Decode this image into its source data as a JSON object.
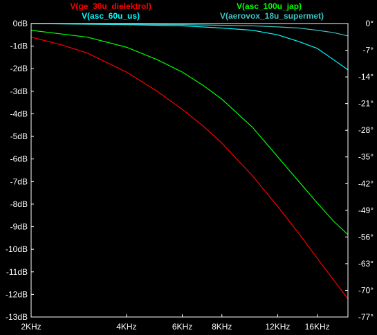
{
  "chart_data": {
    "type": "line",
    "xscale": "log",
    "xlim": [
      2000,
      20000
    ],
    "ylim": [
      -13,
      0
    ],
    "y2lim": [
      -77,
      0
    ],
    "xunit": "Hz",
    "x_ticks": [
      {
        "value": 2000,
        "label": "2KHz"
      },
      {
        "value": 4000,
        "label": "4KHz"
      },
      {
        "value": 6000,
        "label": "6KHz"
      },
      {
        "value": 8000,
        "label": "8KHz"
      },
      {
        "value": 12000,
        "label": "12KHz"
      },
      {
        "value": 16000,
        "label": "16KHz"
      }
    ],
    "y_ticks": [
      {
        "value": 0,
        "label": "0dB"
      },
      {
        "value": -1,
        "label": "-1dB"
      },
      {
        "value": -2,
        "label": "-2dB"
      },
      {
        "value": -3,
        "label": "-3dB"
      },
      {
        "value": -4,
        "label": "-4dB"
      },
      {
        "value": -5,
        "label": "-5dB"
      },
      {
        "value": -6,
        "label": "-6dB"
      },
      {
        "value": -7,
        "label": "-7dB"
      },
      {
        "value": -8,
        "label": "-8dB"
      },
      {
        "value": -9,
        "label": "-9dB"
      },
      {
        "value": -10,
        "label": "-10dB"
      },
      {
        "value": -11,
        "label": "-11dB"
      },
      {
        "value": -12,
        "label": "-12dB"
      },
      {
        "value": -13,
        "label": "-13dB"
      }
    ],
    "y2_ticks": [
      {
        "value": 0,
        "label": "0°"
      },
      {
        "value": -7,
        "label": "-7°"
      },
      {
        "value": -14,
        "label": "-14°"
      },
      {
        "value": -21,
        "label": "-21°"
      },
      {
        "value": -28,
        "label": "-28°"
      },
      {
        "value": -35,
        "label": "-35°"
      },
      {
        "value": -42,
        "label": "-42°"
      },
      {
        "value": -49,
        "label": "-49°"
      },
      {
        "value": -56,
        "label": "-56°"
      },
      {
        "value": -63,
        "label": "-63°"
      },
      {
        "value": -70,
        "label": "-70°"
      },
      {
        "value": -77,
        "label": "-77°"
      }
    ],
    "grid": false,
    "legend_position": "top",
    "series": [
      {
        "name": "V(ge_30u_dielektrol)",
        "color": "#ff0000",
        "points": [
          [
            2000,
            -0.6
          ],
          [
            2500,
            -0.95
          ],
          [
            3000,
            -1.3
          ],
          [
            4000,
            -2.15
          ],
          [
            5000,
            -3.0
          ],
          [
            6000,
            -3.8
          ],
          [
            7000,
            -4.55
          ],
          [
            8000,
            -5.3
          ],
          [
            10000,
            -6.75
          ],
          [
            12000,
            -8.1
          ],
          [
            14000,
            -9.3
          ],
          [
            16000,
            -10.4
          ],
          [
            18000,
            -11.35
          ],
          [
            20000,
            -12.2
          ]
        ]
      },
      {
        "name": "V(asc_60u_us)",
        "color": "#00ffff",
        "points": [
          [
            2000,
            0
          ],
          [
            4000,
            -0.05
          ],
          [
            6000,
            -0.1
          ],
          [
            8000,
            -0.2
          ],
          [
            10000,
            -0.3
          ],
          [
            12000,
            -0.5
          ],
          [
            14000,
            -0.8
          ],
          [
            16000,
            -1.1
          ],
          [
            18000,
            -1.6
          ],
          [
            20000,
            -2.05
          ]
        ]
      },
      {
        "name": "V(asc_100u_jap)",
        "color": "#00ff00",
        "points": [
          [
            2000,
            -0.3
          ],
          [
            3000,
            -0.6
          ],
          [
            4000,
            -1.05
          ],
          [
            5000,
            -1.6
          ],
          [
            6000,
            -2.15
          ],
          [
            7000,
            -2.75
          ],
          [
            8000,
            -3.35
          ],
          [
            10000,
            -4.6
          ],
          [
            12000,
            -5.9
          ],
          [
            14000,
            -7.0
          ],
          [
            16000,
            -7.95
          ],
          [
            18000,
            -8.75
          ],
          [
            20000,
            -9.35
          ]
        ]
      },
      {
        "name": "V(aerovox_18u_supermet)",
        "color": "#40c0c0",
        "points": [
          [
            2000,
            0
          ],
          [
            6000,
            -0.05
          ],
          [
            10000,
            -0.1
          ],
          [
            12000,
            -0.15
          ],
          [
            14000,
            -0.2
          ],
          [
            16000,
            -0.3
          ],
          [
            18000,
            -0.4
          ],
          [
            20000,
            -0.55
          ]
        ]
      }
    ]
  }
}
